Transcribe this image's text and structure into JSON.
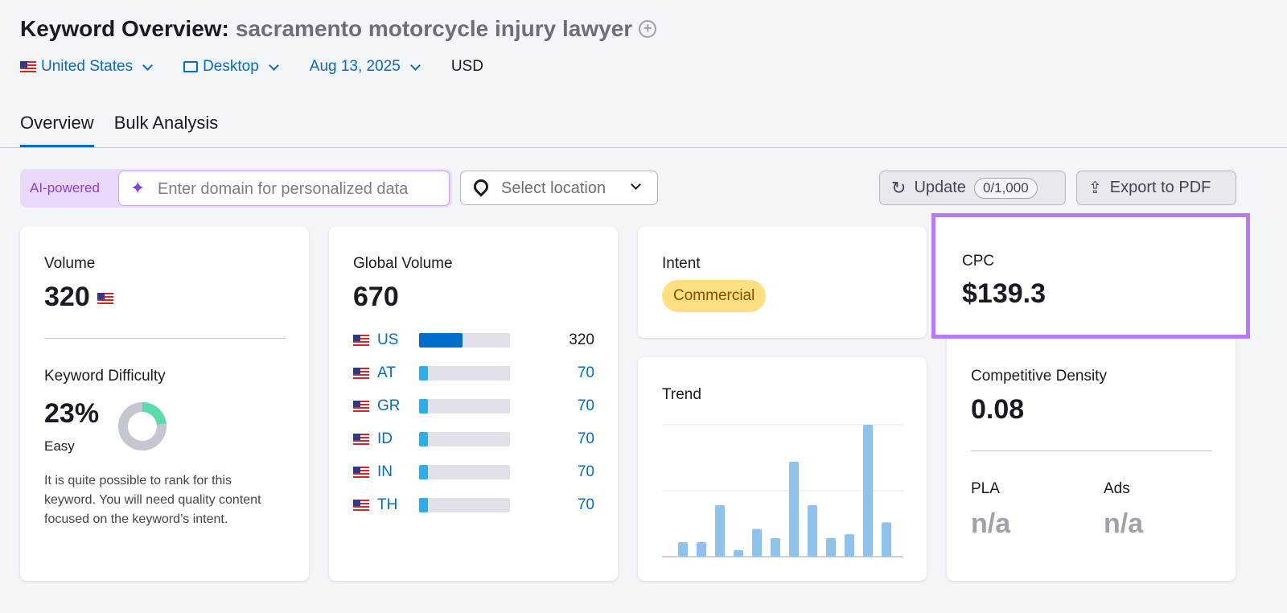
{
  "header": {
    "title": "Keyword Overview:",
    "keyword": "sacramento motorcycle injury lawyer",
    "add_icon": "plus-circle-icon"
  },
  "filters": {
    "country": "United States",
    "device": "Desktop",
    "date": "Aug 13, 2025",
    "currency": "USD"
  },
  "tabs": [
    {
      "label": "Overview",
      "active": true
    },
    {
      "label": "Bulk Analysis",
      "active": false
    }
  ],
  "toolbar": {
    "ai_label": "AI-powered",
    "domain_placeholder": "Enter domain for personalized data",
    "location_placeholder": "Select location",
    "update_label": "Update",
    "update_count": "0/1,000",
    "export_label": "Export to PDF"
  },
  "volume": {
    "label": "Volume",
    "value": "320"
  },
  "kd": {
    "label": "Keyword Difficulty",
    "value": "23%",
    "percent": 23,
    "level": "Easy",
    "description": "It is quite possible to rank for this keyword. You will need quality content focused on the keyword’s intent.",
    "color": "#59ddaa"
  },
  "global": {
    "label": "Global Volume",
    "value": "670",
    "countries": [
      {
        "code": "US",
        "value": "320",
        "share": 0.48,
        "color": "#006dca"
      },
      {
        "code": "AT",
        "value": "70",
        "share": 0.1,
        "color": "#2bafec"
      },
      {
        "code": "GR",
        "value": "70",
        "share": 0.1,
        "color": "#2bafec"
      },
      {
        "code": "ID",
        "value": "70",
        "share": 0.1,
        "color": "#2bafec"
      },
      {
        "code": "IN",
        "value": "70",
        "share": 0.1,
        "color": "#2bafec"
      },
      {
        "code": "TH",
        "value": "70",
        "share": 0.1,
        "color": "#2bafec"
      }
    ]
  },
  "intent": {
    "label": "Intent",
    "value": "Commercial"
  },
  "trend": {
    "label": "Trend",
    "values": [
      11,
      11,
      39,
      5,
      21,
      14,
      72,
      39,
      14,
      17,
      100,
      26
    ],
    "color": "#8fc3ee"
  },
  "cpc": {
    "label": "CPC",
    "value": "$139.3",
    "highlight": "#b57cf5"
  },
  "density": {
    "label": "Competitive Density",
    "value": "0.08",
    "pla_label": "PLA",
    "pla_value": "n/a",
    "ads_label": "Ads",
    "ads_value": "n/a"
  }
}
